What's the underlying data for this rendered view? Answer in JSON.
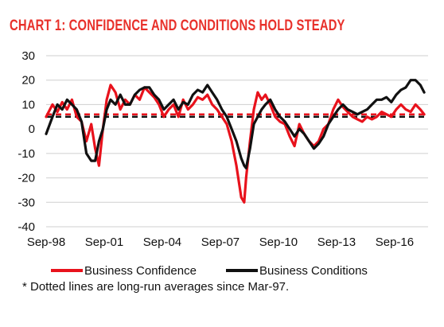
{
  "chart_data": {
    "type": "line",
    "title": "CHART 1: CONFIDENCE AND CONDITIONS HOLD STEADY",
    "footnote": "* Dotted lines are long-run  averages since Mar-97.",
    "ylim": [
      -40,
      30
    ],
    "yticks": [
      "30",
      "20",
      "10",
      "0",
      "-10",
      "-20",
      "-30",
      "-40"
    ],
    "ytick_values": [
      30,
      20,
      10,
      0,
      -10,
      -20,
      -30,
      -40
    ],
    "xlim": [
      1998.67,
      2018.4
    ],
    "xticks": [
      "Sep-98",
      "Sep-01",
      "Sep-04",
      "Sep-07",
      "Sep-10",
      "Sep-13",
      "Sep-16"
    ],
    "xtick_values": [
      1998.67,
      2001.67,
      2004.67,
      2007.67,
      2010.67,
      2013.67,
      2016.67
    ],
    "grid": true,
    "legend_position": "bottom",
    "series": [
      {
        "name": "Business Confidence",
        "color": "#e8121c",
        "long_run_average": 6,
        "x": [
          1998.67,
          1999.0,
          1999.25,
          1999.5,
          1999.75,
          2000.0,
          2000.25,
          2000.5,
          2000.75,
          2001.0,
          2001.2,
          2001.4,
          2001.6,
          2001.8,
          2002.0,
          2002.25,
          2002.5,
          2002.75,
          2003.0,
          2003.25,
          2003.5,
          2003.75,
          2004.0,
          2004.25,
          2004.5,
          2004.75,
          2005.0,
          2005.25,
          2005.5,
          2005.75,
          2006.0,
          2006.25,
          2006.5,
          2006.75,
          2007.0,
          2007.25,
          2007.5,
          2007.75,
          2008.0,
          2008.25,
          2008.5,
          2008.75,
          2008.9,
          2009.0,
          2009.2,
          2009.4,
          2009.6,
          2009.8,
          2010.0,
          2010.25,
          2010.5,
          2010.75,
          2011.0,
          2011.25,
          2011.5,
          2011.75,
          2012.0,
          2012.25,
          2012.5,
          2012.75,
          2013.0,
          2013.25,
          2013.5,
          2013.75,
          2014.0,
          2014.25,
          2014.5,
          2014.75,
          2015.0,
          2015.25,
          2015.5,
          2015.75,
          2016.0,
          2016.25,
          2016.5,
          2016.75,
          2017.0,
          2017.25,
          2017.5,
          2017.75,
          2018.0,
          2018.2
        ],
        "y": [
          5,
          10,
          7,
          11,
          8,
          12,
          5,
          3,
          -5,
          2,
          -8,
          -15,
          0,
          12,
          18,
          15,
          8,
          12,
          10,
          14,
          12,
          17,
          15,
          13,
          10,
          5,
          8,
          10,
          5,
          12,
          8,
          10,
          13,
          12,
          14,
          10,
          8,
          5,
          2,
          -5,
          -15,
          -28,
          -30,
          -20,
          -5,
          8,
          15,
          12,
          14,
          10,
          5,
          3,
          2,
          -3,
          -7,
          2,
          -2,
          -5,
          -7,
          -5,
          0,
          2,
          8,
          12,
          9,
          7,
          5,
          4,
          3,
          5,
          4,
          5,
          7,
          6,
          5,
          8,
          10,
          8,
          7,
          10,
          8,
          6
        ]
      },
      {
        "name": "Business Conditions",
        "color": "#111111",
        "long_run_average": 5,
        "x": [
          1998.67,
          1999.0,
          1999.25,
          1999.5,
          1999.75,
          2000.0,
          2000.25,
          2000.5,
          2000.75,
          2001.0,
          2001.2,
          2001.4,
          2001.6,
          2001.8,
          2002.0,
          2002.25,
          2002.5,
          2002.75,
          2003.0,
          2003.25,
          2003.5,
          2003.75,
          2004.0,
          2004.25,
          2004.5,
          2004.75,
          2005.0,
          2005.25,
          2005.5,
          2005.75,
          2006.0,
          2006.25,
          2006.5,
          2006.75,
          2007.0,
          2007.25,
          2007.5,
          2007.75,
          2008.0,
          2008.25,
          2008.5,
          2008.75,
          2008.9,
          2009.0,
          2009.2,
          2009.4,
          2009.6,
          2009.8,
          2010.0,
          2010.25,
          2010.5,
          2010.75,
          2011.0,
          2011.25,
          2011.5,
          2011.75,
          2012.0,
          2012.25,
          2012.5,
          2012.75,
          2013.0,
          2013.25,
          2013.5,
          2013.75,
          2014.0,
          2014.25,
          2014.5,
          2014.75,
          2015.0,
          2015.25,
          2015.5,
          2015.75,
          2016.0,
          2016.25,
          2016.5,
          2016.75,
          2017.0,
          2017.25,
          2017.5,
          2017.75,
          2018.0,
          2018.2
        ],
        "y": [
          -2,
          5,
          10,
          8,
          12,
          10,
          8,
          3,
          -10,
          -13,
          -13,
          -5,
          0,
          8,
          12,
          10,
          14,
          10,
          10,
          14,
          16,
          17,
          17,
          14,
          12,
          8,
          10,
          12,
          8,
          11,
          10,
          14,
          16,
          15,
          18,
          15,
          12,
          8,
          5,
          0,
          -5,
          -12,
          -15,
          -16,
          -8,
          2,
          5,
          8,
          10,
          12,
          8,
          5,
          3,
          0,
          -3,
          0,
          -2,
          -5,
          -8,
          -6,
          -3,
          2,
          5,
          8,
          10,
          8,
          7,
          6,
          7,
          8,
          10,
          12,
          12,
          13,
          11,
          14,
          16,
          17,
          20,
          20,
          18,
          15
        ]
      }
    ]
  }
}
